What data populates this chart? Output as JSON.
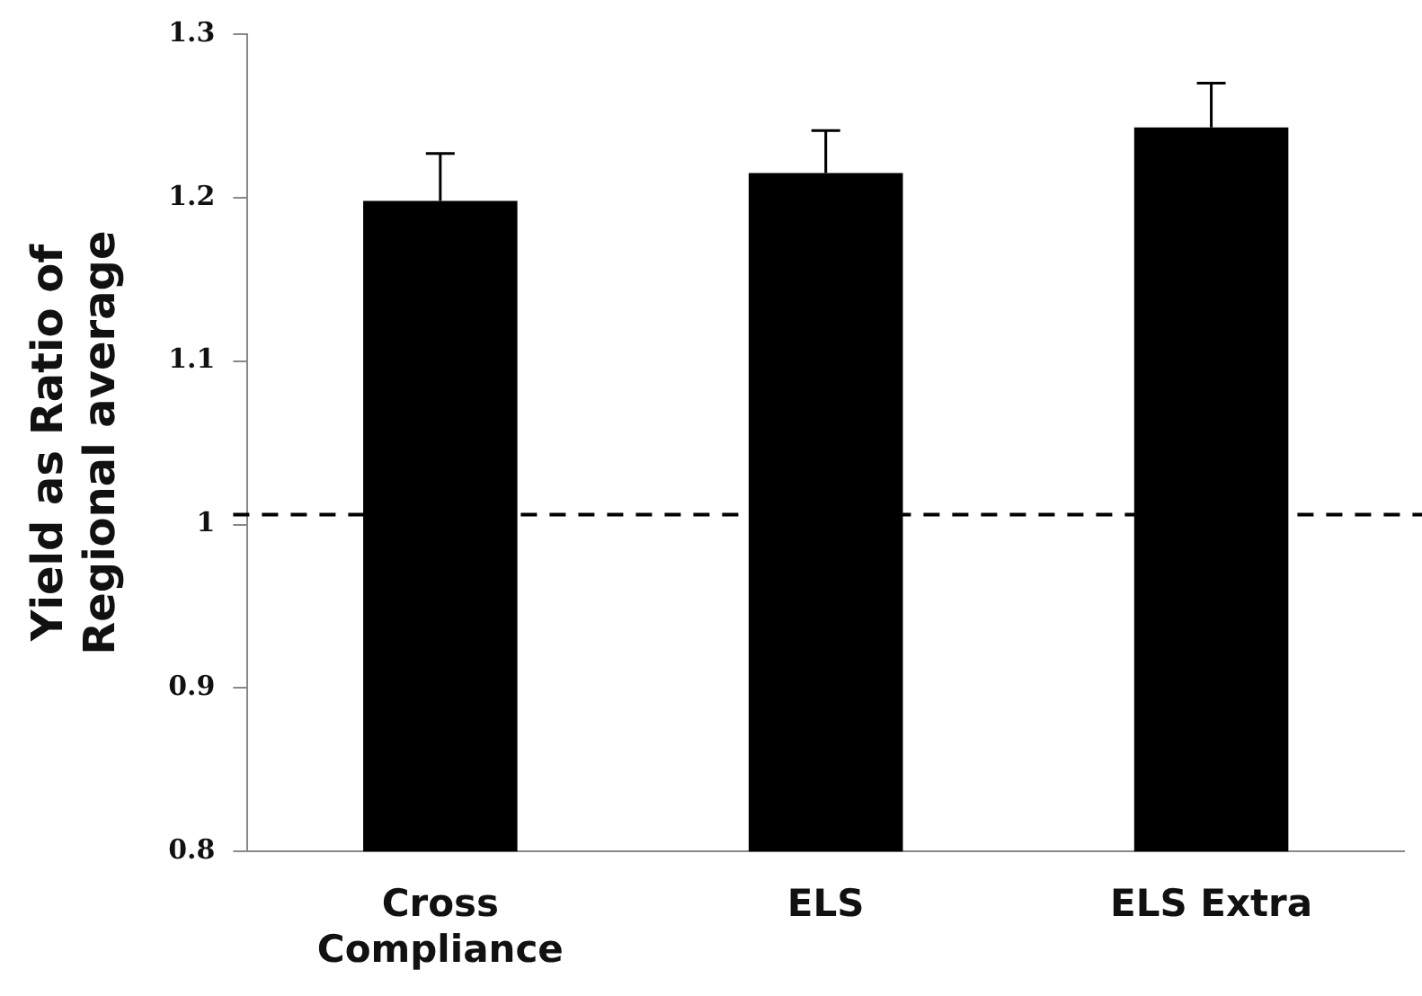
{
  "chart_data": {
    "type": "bar",
    "ylabel": "Yield as Ratio of Regional average",
    "categories": [
      "Cross Compliance",
      "ELS",
      "ELS Extra"
    ],
    "values": [
      1.198,
      1.215,
      1.243
    ],
    "errors": [
      0.029,
      0.026,
      0.027
    ],
    "color": "#000000",
    "ylim": [
      0.8,
      1.3
    ],
    "yticks": [
      0.8,
      0.9,
      1,
      1.1,
      1.2,
      1.3
    ],
    "grid": false,
    "legend": false,
    "ref_lines": [
      {
        "axis": "y",
        "value": 1.006,
        "color": "#000000",
        "line_style": "dashed"
      }
    ]
  }
}
